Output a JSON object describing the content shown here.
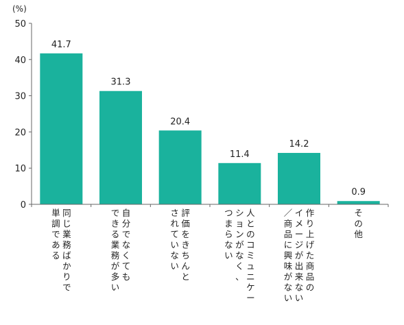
{
  "chart_data": {
    "type": "bar",
    "unit": "(%)",
    "categories": [
      [
        "同じ業務ばかりで",
        "単調である"
      ],
      [
        "自分でなくても",
        "できる業務が多い"
      ],
      [
        "評価をきちんと",
        "されていない"
      ],
      [
        "人とのコミュニケー",
        "ションがなく、",
        "つまらない"
      ],
      [
        "作り上げた商品の",
        "イメージが出来ない",
        "／商品に興味がない"
      ],
      [
        "その他"
      ]
    ],
    "values": [
      41.7,
      31.3,
      20.4,
      11.4,
      14.2,
      0.9
    ],
    "value_labels": [
      "41.7",
      "31.3",
      "20.4",
      "11.4",
      "14.2",
      "0.9"
    ],
    "yticks": [
      "0",
      "10",
      "20",
      "30",
      "40",
      "50"
    ],
    "ylim": [
      0,
      50
    ],
    "grid": false,
    "legend": "none",
    "colors": {
      "bar": "#1ab29d",
      "axis": "#666666",
      "text": "#222222"
    }
  }
}
